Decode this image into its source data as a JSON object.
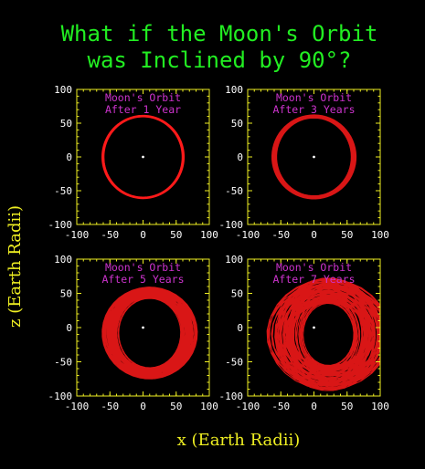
{
  "figure": {
    "title_line1": "What if the Moon's Orbit",
    "title_line2": "was Inclined by 90°?",
    "xlabel": "x (Earth Radii)",
    "ylabel": "z (Earth Radii)"
  },
  "colors": {
    "background": "#000000",
    "title": "#22ee22",
    "axis_labels": "#eeee22",
    "frame": "#eeee22",
    "ticks_text": "#ffffff",
    "panel_label": "#cc33cc",
    "orbit": "#ff1a1a",
    "earth": "#ffffff"
  },
  "chart_data": [
    {
      "type": "line",
      "label_line1": "Moon's Orbit",
      "label_line2": "After 1 Year",
      "xlim": [
        -100,
        100
      ],
      "ylim": [
        -100,
        100
      ],
      "xticks": [
        -100,
        -50,
        0,
        50,
        100
      ],
      "yticks": [
        -100,
        -50,
        0,
        50,
        100
      ],
      "xtick_labels": [
        "-100",
        "-50",
        "0",
        "50",
        "100"
      ],
      "ytick_labels": [
        "-100",
        "-50",
        "0",
        "50",
        "100"
      ],
      "orbit": {
        "center": [
          0,
          0
        ],
        "radius": 60,
        "spread": 1,
        "loops": 13
      },
      "earth": [
        0,
        0
      ]
    },
    {
      "type": "line",
      "label_line1": "Moon's Orbit",
      "label_line2": "After 3 Years",
      "xlim": [
        -100,
        100
      ],
      "ylim": [
        -100,
        100
      ],
      "xticks": [
        -100,
        -50,
        0,
        50,
        100
      ],
      "yticks": [
        -100,
        -50,
        0,
        50,
        100
      ],
      "xtick_labels": [
        "-100",
        "-50",
        "0",
        "50",
        "100"
      ],
      "ytick_labels": [
        "-100",
        "-50",
        "0",
        "50",
        "100"
      ],
      "orbit": {
        "center": [
          0,
          0
        ],
        "radius": 58,
        "spread": 4,
        "loops": 40
      },
      "earth": [
        0,
        0
      ]
    },
    {
      "type": "line",
      "label_line1": "Moon's Orbit",
      "label_line2": "After 5 Years",
      "xlim": [
        -100,
        100
      ],
      "ylim": [
        -100,
        100
      ],
      "xticks": [
        -100,
        -50,
        0,
        50,
        100
      ],
      "yticks": [
        -100,
        -50,
        0,
        50,
        100
      ],
      "xtick_labels": [
        "-100",
        "-50",
        "0",
        "50",
        "100"
      ],
      "ytick_labels": [
        "-100",
        "-50",
        "0",
        "50",
        "100"
      ],
      "orbit": {
        "center": [
          10,
          -8
        ],
        "radius": 52,
        "spread": 14,
        "loops": 66
      },
      "earth": [
        0,
        0
      ]
    },
    {
      "type": "line",
      "label_line1": "Moon's Orbit",
      "label_line2": "After 7 Years",
      "xlim": [
        -100,
        100
      ],
      "ylim": [
        -100,
        100
      ],
      "xticks": [
        -100,
        -50,
        0,
        50,
        100
      ],
      "yticks": [
        -100,
        -50,
        0,
        50,
        100
      ],
      "xtick_labels": [
        "-100",
        "-50",
        "0",
        "50",
        "100"
      ],
      "ytick_labels": [
        "-100",
        "-50",
        "0",
        "50",
        "100"
      ],
      "orbit": {
        "center": [
          22,
          -10
        ],
        "radius": 48,
        "spread": 30,
        "loops": 92
      },
      "earth": [
        0,
        0
      ]
    }
  ]
}
